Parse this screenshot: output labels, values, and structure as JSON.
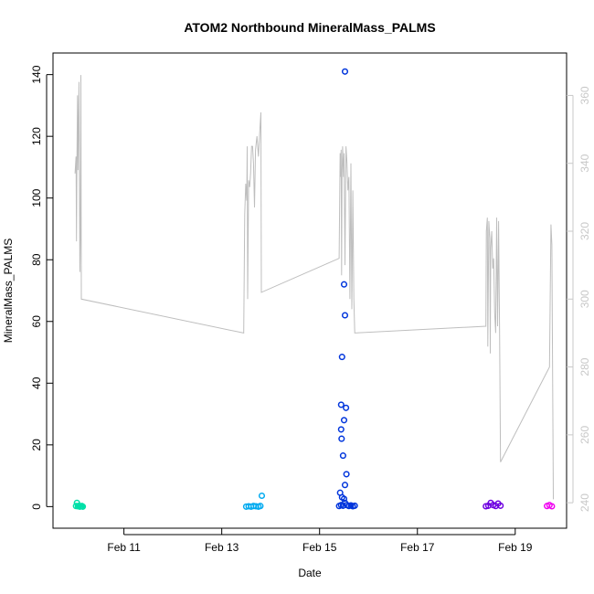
{
  "chart_data": {
    "type": "scatter",
    "title": "ATOM2 Northbound MineralMass_PALMS",
    "xlabel": "Date",
    "ylabel": "MineralMass_PALMS",
    "x_ticks": [
      "Feb 11",
      "Feb 13",
      "Feb 15",
      "Feb 17",
      "Feb 19"
    ],
    "x_tick_days": [
      11,
      13,
      15,
      17,
      19
    ],
    "xlim_days": [
      9.55,
      20.05
    ],
    "ylim": [
      -7,
      147
    ],
    "y_ticks": [
      0,
      20,
      40,
      60,
      80,
      100,
      120,
      140
    ],
    "y2_ticks": [
      240,
      260,
      280,
      300,
      320,
      340,
      360
    ],
    "y2lim": [
      232.5,
      372.5
    ],
    "grid": false,
    "legend": "none",
    "colors": {
      "axis": "#000000",
      "secondary_axis": "#c8c8c8",
      "line": "#bebebe"
    },
    "series": [
      {
        "color": "#00e0a8",
        "points": [
          [
            10.02,
            0.2
          ],
          [
            10.04,
            1.2
          ],
          [
            10.06,
            0.1
          ],
          [
            10.08,
            0.3
          ],
          [
            10.1,
            0.0
          ],
          [
            10.12,
            0.1
          ],
          [
            10.14,
            0.2
          ],
          [
            10.16,
            0.0
          ]
        ]
      },
      {
        "color": "#00aaf0",
        "points": [
          [
            13.5,
            0.0
          ],
          [
            13.55,
            0.1
          ],
          [
            13.6,
            0.0
          ],
          [
            13.65,
            0.2
          ],
          [
            13.7,
            0.1
          ],
          [
            13.75,
            0.0
          ],
          [
            13.79,
            0.2
          ],
          [
            13.82,
            3.5
          ]
        ]
      },
      {
        "color": "#0035dc",
        "points": [
          [
            15.52,
            141
          ],
          [
            15.5,
            72
          ],
          [
            15.52,
            62
          ],
          [
            15.46,
            48.5
          ],
          [
            15.44,
            33
          ],
          [
            15.54,
            32
          ],
          [
            15.5,
            28
          ],
          [
            15.44,
            25
          ],
          [
            15.45,
            22
          ],
          [
            15.48,
            16.5
          ],
          [
            15.55,
            10.5
          ],
          [
            15.52,
            7
          ],
          [
            15.42,
            4.5
          ],
          [
            15.46,
            3
          ],
          [
            15.5,
            2.5
          ],
          [
            15.4,
            0.2
          ],
          [
            15.44,
            0.5
          ],
          [
            15.48,
            0.3
          ],
          [
            15.52,
            1.2
          ],
          [
            15.56,
            0.5
          ],
          [
            15.6,
            0.2
          ],
          [
            15.64,
            0.4
          ],
          [
            15.68,
            0.1
          ],
          [
            15.72,
            0.3
          ]
        ]
      },
      {
        "color": "#6e00e0",
        "points": [
          [
            18.4,
            0.1
          ],
          [
            18.45,
            0.3
          ],
          [
            18.5,
            1.2
          ],
          [
            18.55,
            0.5
          ],
          [
            18.6,
            0.2
          ],
          [
            18.65,
            1.0
          ],
          [
            18.7,
            0.3
          ]
        ]
      },
      {
        "color": "#f000f0",
        "points": [
          [
            19.65,
            0.2
          ],
          [
            19.7,
            0.5
          ],
          [
            19.75,
            0.1
          ]
        ]
      }
    ],
    "secondary_line": [
      [
        10.0,
        337
      ],
      [
        10.02,
        342
      ],
      [
        10.03,
        317
      ],
      [
        10.04,
        341
      ],
      [
        10.05,
        360
      ],
      [
        10.06,
        338
      ],
      [
        10.08,
        364
      ],
      [
        10.1,
        308
      ],
      [
        10.11,
        320
      ],
      [
        10.12,
        366
      ],
      [
        10.13,
        300
      ],
      [
        13.45,
        290
      ],
      [
        13.47,
        325
      ],
      [
        13.49,
        334
      ],
      [
        13.51,
        329
      ],
      [
        13.52,
        345
      ],
      [
        13.53,
        300
      ],
      [
        13.55,
        335
      ],
      [
        13.57,
        333
      ],
      [
        13.59,
        337
      ],
      [
        13.61,
        345
      ],
      [
        13.63,
        345
      ],
      [
        13.65,
        340
      ],
      [
        13.67,
        327
      ],
      [
        13.69,
        344
      ],
      [
        13.72,
        348
      ],
      [
        13.75,
        342
      ],
      [
        13.78,
        350
      ],
      [
        13.8,
        355
      ],
      [
        13.81,
        302
      ],
      [
        15.4,
        312
      ],
      [
        15.42,
        343
      ],
      [
        15.43,
        336
      ],
      [
        15.44,
        344
      ],
      [
        15.45,
        307
      ],
      [
        15.46,
        337
      ],
      [
        15.47,
        345
      ],
      [
        15.49,
        336
      ],
      [
        15.5,
        343
      ],
      [
        15.52,
        310
      ],
      [
        15.54,
        345
      ],
      [
        15.56,
        340
      ],
      [
        15.58,
        332
      ],
      [
        15.6,
        336
      ],
      [
        15.62,
        300
      ],
      [
        15.64,
        340
      ],
      [
        15.66,
        297
      ],
      [
        15.68,
        332
      ],
      [
        15.7,
        300
      ],
      [
        15.72,
        290
      ],
      [
        18.4,
        292
      ],
      [
        18.41,
        320
      ],
      [
        18.43,
        324
      ],
      [
        18.44,
        286
      ],
      [
        18.46,
        323
      ],
      [
        18.48,
        318
      ],
      [
        18.49,
        284
      ],
      [
        18.5,
        315
      ],
      [
        18.52,
        320
      ],
      [
        18.54,
        309
      ],
      [
        18.56,
        312
      ],
      [
        18.58,
        296
      ],
      [
        18.6,
        290
      ],
      [
        18.62,
        324
      ],
      [
        18.64,
        292
      ],
      [
        18.66,
        323
      ],
      [
        18.68,
        290
      ],
      [
        18.7,
        252
      ],
      [
        19.7,
        280
      ],
      [
        19.73,
        322
      ],
      [
        19.75,
        316
      ],
      [
        19.78,
        241
      ]
    ]
  }
}
